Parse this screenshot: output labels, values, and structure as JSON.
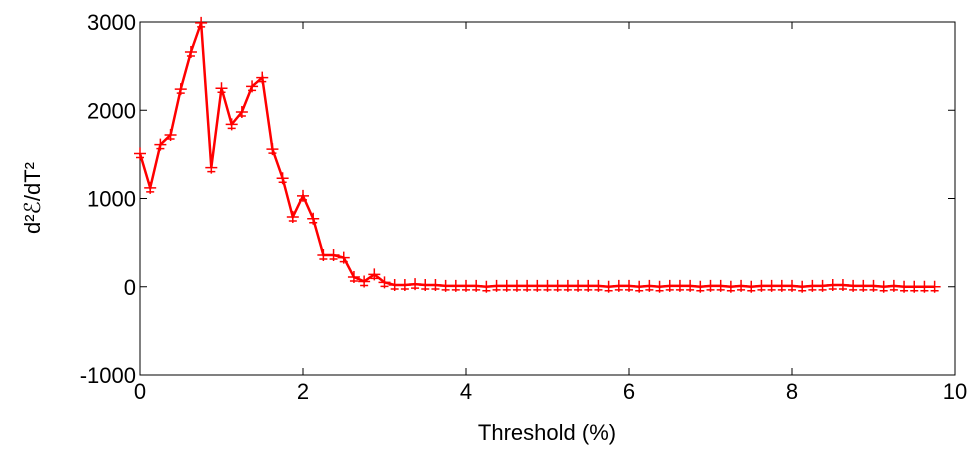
{
  "chart_data": {
    "type": "line",
    "xlabel": "Threshold (%)",
    "ylabel": "d²ℰ/dT²",
    "x": [
      0,
      0.125,
      0.25,
      0.375,
      0.5,
      0.625,
      0.75,
      0.875,
      1,
      1.125,
      1.25,
      1.375,
      1.5,
      1.625,
      1.75,
      1.875,
      2,
      2.125,
      2.25,
      2.375,
      2.5,
      2.625,
      2.75,
      2.875,
      3,
      3.125,
      3.25,
      3.375,
      3.5,
      3.625,
      3.75,
      3.875,
      4,
      4.125,
      4.25,
      4.375,
      4.5,
      4.625,
      4.75,
      4.875,
      5,
      5.125,
      5.25,
      5.375,
      5.5,
      5.625,
      5.75,
      5.875,
      6,
      6.125,
      6.25,
      6.375,
      6.5,
      6.625,
      6.75,
      6.875,
      7,
      7.125,
      7.25,
      7.375,
      7.5,
      7.625,
      7.75,
      7.875,
      8,
      8.125,
      8.25,
      8.375,
      8.5,
      8.625,
      8.75,
      8.875,
      9,
      9.125,
      9.25,
      9.375,
      9.5,
      9.625,
      9.75
    ],
    "series": [
      {
        "name": "d2E/dT2",
        "color": "#ff0000",
        "values": [
          1510,
          1120,
          1610,
          1720,
          2240,
          2660,
          2990,
          1350,
          2250,
          1840,
          1980,
          2270,
          2370,
          1560,
          1230,
          790,
          1030,
          770,
          360,
          360,
          330,
          110,
          60,
          140,
          50,
          20,
          20,
          30,
          20,
          20,
          10,
          10,
          10,
          10,
          0,
          10,
          10,
          10,
          10,
          10,
          10,
          10,
          10,
          10,
          10,
          10,
          0,
          10,
          10,
          0,
          10,
          0,
          10,
          10,
          10,
          0,
          10,
          10,
          0,
          10,
          0,
          10,
          10,
          10,
          10,
          0,
          10,
          10,
          20,
          20,
          10,
          10,
          10,
          0,
          10,
          0,
          0,
          0,
          0
        ]
      }
    ],
    "xlim": [
      0,
      10
    ],
    "ylim": [
      -1000,
      3000
    ],
    "xticks": [
      0,
      2,
      4,
      6,
      8,
      10
    ],
    "yticks": [
      -1000,
      0,
      1000,
      2000,
      3000
    ]
  }
}
